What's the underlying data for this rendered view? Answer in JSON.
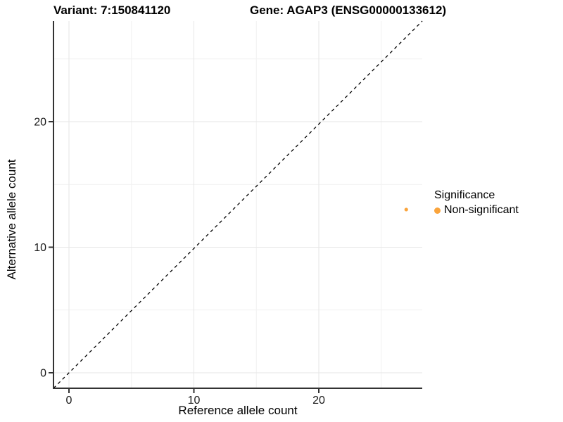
{
  "chart_data": {
    "type": "scatter",
    "title_left": "Variant: 7:150841120",
    "title_right": "Gene: AGAP3 (ENSG00000133612)",
    "xlabel": "Reference allele count",
    "ylabel": "Alternative allele count",
    "x_ticks": [
      0,
      10,
      20
    ],
    "y_ticks": [
      0,
      10,
      20
    ],
    "minor_breaks": [
      5,
      15,
      25
    ],
    "xlim": [
      -1.3,
      28.3
    ],
    "ylim": [
      -1.3,
      28.1
    ],
    "grid": {
      "major": true,
      "minor": true
    },
    "points": [
      {
        "x": 27,
        "y": 13,
        "series": "Non-significant"
      }
    ],
    "reference_line": {
      "type": "identity",
      "style": "dashed"
    },
    "legend": {
      "title": "Significance",
      "position": "right",
      "entries": [
        {
          "label": "Non-significant",
          "color": "#FAA43C"
        }
      ]
    }
  },
  "colors": {
    "background": "#FFFFFF",
    "gridline_major": "#E6E6E6",
    "gridline_minor": "#F1F1F1",
    "axis_line": "#333333",
    "tick_text": "#1A1A1A",
    "point": "#FAA43C",
    "reference_line": "#000000"
  }
}
